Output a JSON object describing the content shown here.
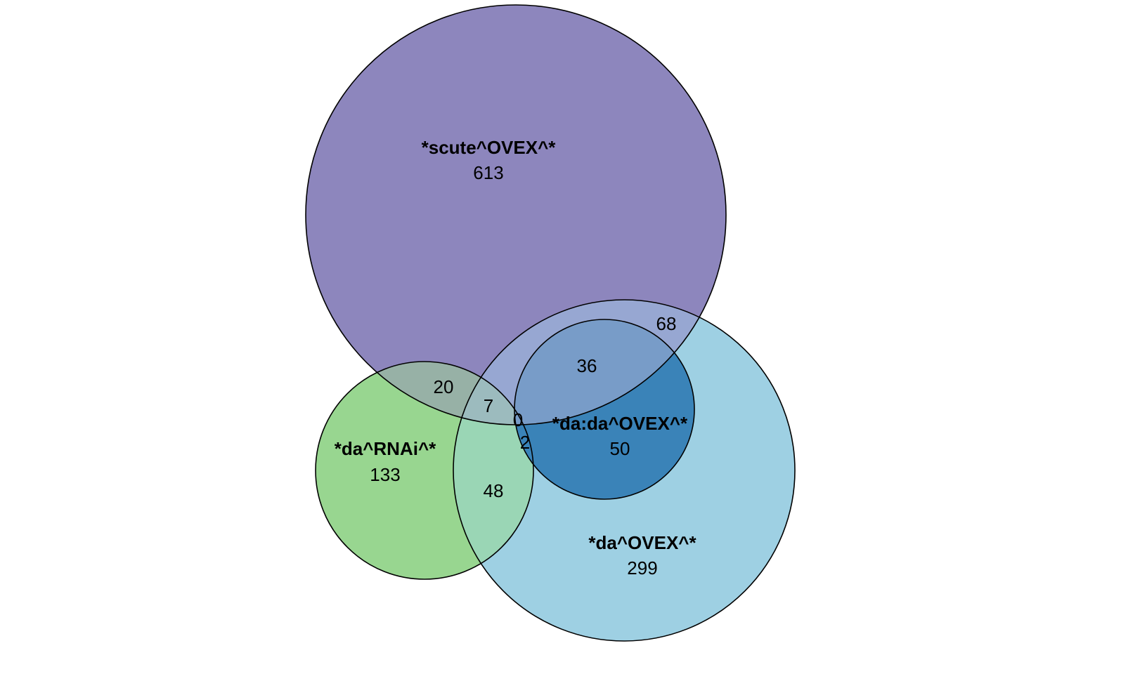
{
  "diagram": {
    "type": "venn",
    "sets": [
      {
        "name": "*scute^OVEX^*",
        "unique_count": "613",
        "color": "#8D86BD"
      },
      {
        "name": "*da^OVEX^*",
        "unique_count": "299",
        "color": "#9ED0E3"
      },
      {
        "name": "*da^RNAi^*",
        "unique_count": "133",
        "color": "#98D690"
      },
      {
        "name": "*da:da^OVEX^*",
        "unique_count": "50",
        "color": "#3A83B8"
      }
    ],
    "intersections": [
      {
        "sets": [
          "*scute^OVEX^*",
          "*da^OVEX^*"
        ],
        "count": "68",
        "color": "#97A7D2"
      },
      {
        "sets": [
          "*scute^OVEX^*",
          "*da^OVEX^*",
          "*da:da^OVEX^*"
        ],
        "count": "36",
        "color": "#789CC8"
      },
      {
        "sets": [
          "*scute^OVEX^*",
          "*da^RNAi^*"
        ],
        "count": "20",
        "color": "#97B1A6"
      },
      {
        "sets": [
          "*scute^OVEX^*",
          "*da^RNAi^*",
          "*da^OVEX^*"
        ],
        "count": "7",
        "color": "#9CBBBE"
      },
      {
        "sets": [
          "*scute^OVEX^*",
          "*da^RNAi^*",
          "*da^OVEX^*",
          "*da:da^OVEX^*"
        ],
        "count": "0"
      },
      {
        "sets": [
          "*da^RNAi^*",
          "*da^OVEX^*",
          "*da:da^OVEX^*"
        ],
        "count": "2"
      },
      {
        "sets": [
          "*da^RNAi^*",
          "*da^OVEX^*"
        ],
        "count": "48",
        "color": "#9AD6B5"
      }
    ]
  }
}
